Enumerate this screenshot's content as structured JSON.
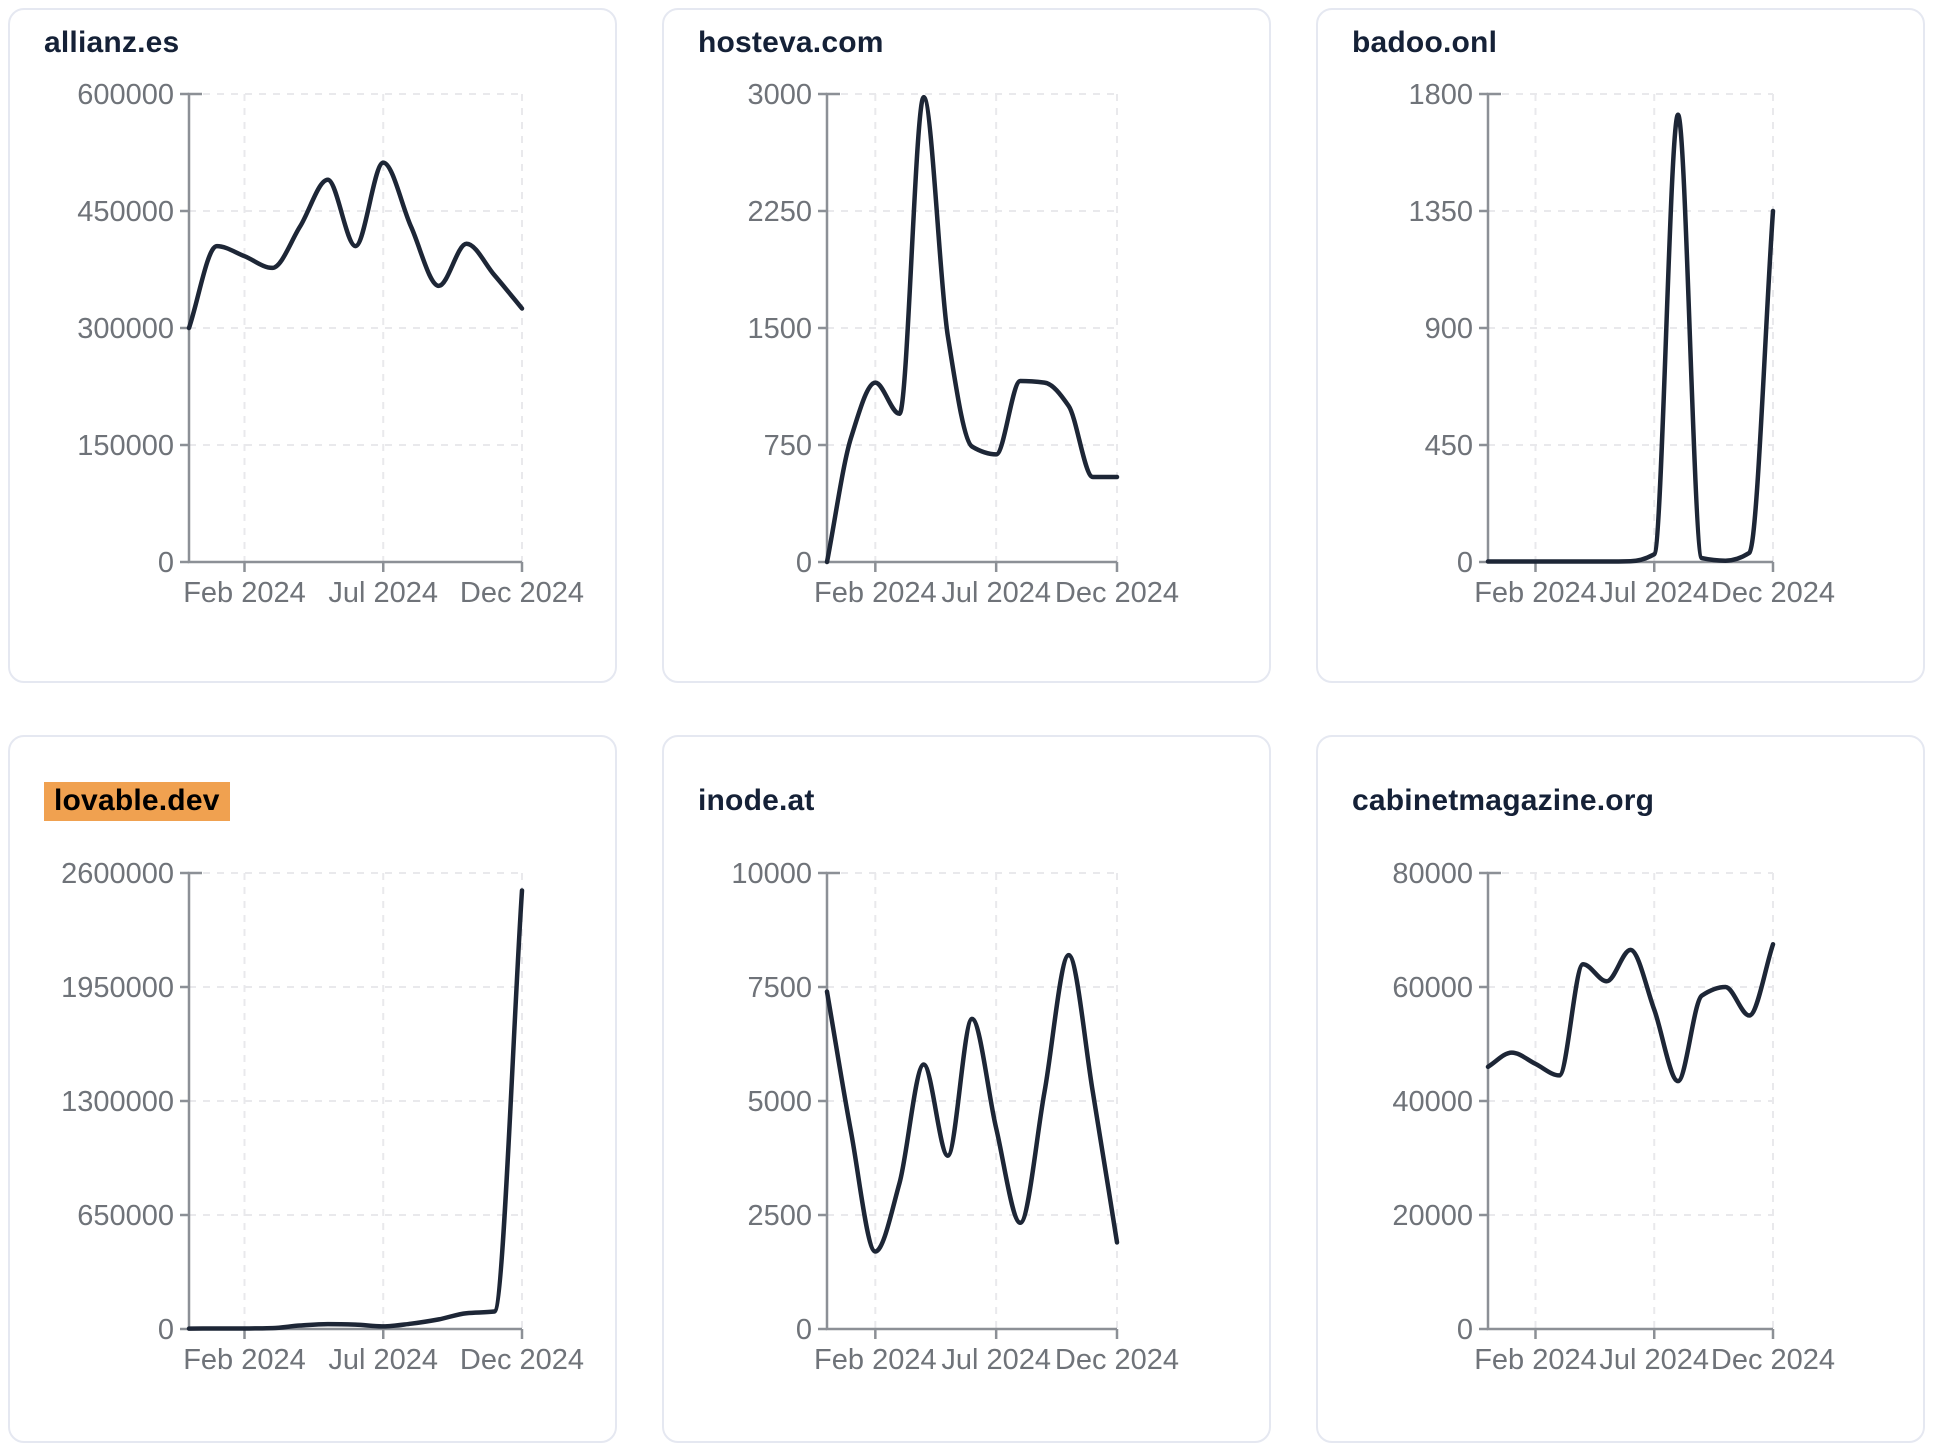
{
  "colors": {
    "background": "#ffffff",
    "card_border": "#e5e8f1",
    "title": "#152137",
    "line": "#1d2636",
    "tick_label": "#6f7379",
    "axis": "#8c9096",
    "grid": "#e9e9ec",
    "highlight": "#f0a150",
    "highlight_text": "#000000"
  },
  "chart_data": [
    {
      "type": "line",
      "title": "allianz.es",
      "title_highlighted": false,
      "x": [
        "2023-12",
        "2024-01",
        "2024-02",
        "2024-03",
        "2024-04",
        "2024-05",
        "2024-06",
        "2024-07",
        "2024-08",
        "2024-09",
        "2024-10",
        "2024-11",
        "2024-12"
      ],
      "values": [
        300000,
        405000,
        392000,
        377000,
        430000,
        490000,
        405000,
        512000,
        430000,
        354000,
        408000,
        368000,
        325000
      ],
      "x_tick_labels": [
        "Feb 2024",
        "Jul 2024",
        "Dec 2024"
      ],
      "x_tick_indices": [
        2,
        7,
        12
      ],
      "y_ticks": [
        0,
        150000,
        300000,
        450000,
        600000
      ],
      "ylim": [
        0,
        600000
      ],
      "xlabel": "",
      "ylabel": "",
      "grid": true,
      "legend": "none"
    },
    {
      "type": "line",
      "title": "hosteva.com",
      "title_highlighted": false,
      "x": [
        "2023-12",
        "2024-01",
        "2024-02",
        "2024-03",
        "2024-04",
        "2024-05",
        "2024-06",
        "2024-07",
        "2024-08",
        "2024-09",
        "2024-10",
        "2024-11",
        "2024-12"
      ],
      "values": [
        0,
        800,
        1150,
        950,
        2980,
        1450,
        740,
        690,
        1160,
        1150,
        1000,
        545,
        545
      ],
      "x_tick_labels": [
        "Feb 2024",
        "Jul 2024",
        "Dec 2024"
      ],
      "x_tick_indices": [
        2,
        7,
        12
      ],
      "y_ticks": [
        0,
        750,
        1500,
        2250,
        3000
      ],
      "ylim": [
        0,
        3000
      ],
      "xlabel": "",
      "ylabel": "",
      "grid": true,
      "legend": "none"
    },
    {
      "type": "line",
      "title": "badoo.onl",
      "title_highlighted": false,
      "x": [
        "2023-12",
        "2024-01",
        "2024-02",
        "2024-03",
        "2024-04",
        "2024-05",
        "2024-06",
        "2024-07",
        "2024-08",
        "2024-09",
        "2024-10",
        "2024-11",
        "2024-12"
      ],
      "values": [
        2,
        2,
        2,
        2,
        2,
        2,
        3,
        30,
        1720,
        15,
        5,
        35,
        1350
      ],
      "x_tick_labels": [
        "Feb 2024",
        "Jul 2024",
        "Dec 2024"
      ],
      "x_tick_indices": [
        2,
        7,
        12
      ],
      "y_ticks": [
        0,
        450,
        900,
        1350,
        1800
      ],
      "ylim": [
        0,
        1800
      ],
      "xlabel": "",
      "ylabel": "",
      "grid": true,
      "legend": "none"
    },
    {
      "type": "line",
      "title": "lovable.dev",
      "title_highlighted": true,
      "x": [
        "2023-12",
        "2024-01",
        "2024-02",
        "2024-03",
        "2024-04",
        "2024-05",
        "2024-06",
        "2024-07",
        "2024-08",
        "2024-09",
        "2024-10",
        "2024-11",
        "2024-12"
      ],
      "values": [
        2000,
        3000,
        3000,
        5000,
        20000,
        28000,
        25000,
        15000,
        30000,
        55000,
        90000,
        100000,
        2500000
      ],
      "x_tick_labels": [
        "Feb 2024",
        "Jul 2024",
        "Dec 2024"
      ],
      "x_tick_indices": [
        2,
        7,
        12
      ],
      "y_ticks": [
        0,
        650000,
        1300000,
        1950000,
        2600000
      ],
      "ylim": [
        0,
        2600000
      ],
      "xlabel": "",
      "ylabel": "",
      "grid": true,
      "legend": "none"
    },
    {
      "type": "line",
      "title": "inode.at",
      "title_highlighted": false,
      "x": [
        "2023-12",
        "2024-01",
        "2024-02",
        "2024-03",
        "2024-04",
        "2024-05",
        "2024-06",
        "2024-07",
        "2024-08",
        "2024-09",
        "2024-10",
        "2024-11",
        "2024-12"
      ],
      "values": [
        7400,
        4300,
        1700,
        3200,
        5800,
        3800,
        6800,
        4400,
        2330,
        5200,
        8200,
        5200,
        1900
      ],
      "x_tick_labels": [
        "Feb 2024",
        "Jul 2024",
        "Dec 2024"
      ],
      "x_tick_indices": [
        2,
        7,
        12
      ],
      "y_ticks": [
        0,
        2500,
        5000,
        7500,
        10000
      ],
      "ylim": [
        0,
        10000
      ],
      "xlabel": "",
      "ylabel": "",
      "grid": true,
      "legend": "none"
    },
    {
      "type": "line",
      "title": "cabinetmagazine.org",
      "title_highlighted": false,
      "x": [
        "2023-12",
        "2024-01",
        "2024-02",
        "2024-03",
        "2024-04",
        "2024-05",
        "2024-06",
        "2024-07",
        "2024-08",
        "2024-09",
        "2024-10",
        "2024-11",
        "2024-12"
      ],
      "values": [
        46000,
        48500,
        46500,
        44500,
        64000,
        61000,
        66500,
        56000,
        43500,
        58500,
        60000,
        55000,
        67500
      ],
      "x_tick_labels": [
        "Feb 2024",
        "Jul 2024",
        "Dec 2024"
      ],
      "x_tick_indices": [
        2,
        7,
        12
      ],
      "y_ticks": [
        0,
        20000,
        40000,
        60000,
        80000
      ],
      "ylim": [
        0,
        80000
      ],
      "xlabel": "",
      "ylabel": "",
      "grid": true,
      "legend": "none"
    }
  ]
}
